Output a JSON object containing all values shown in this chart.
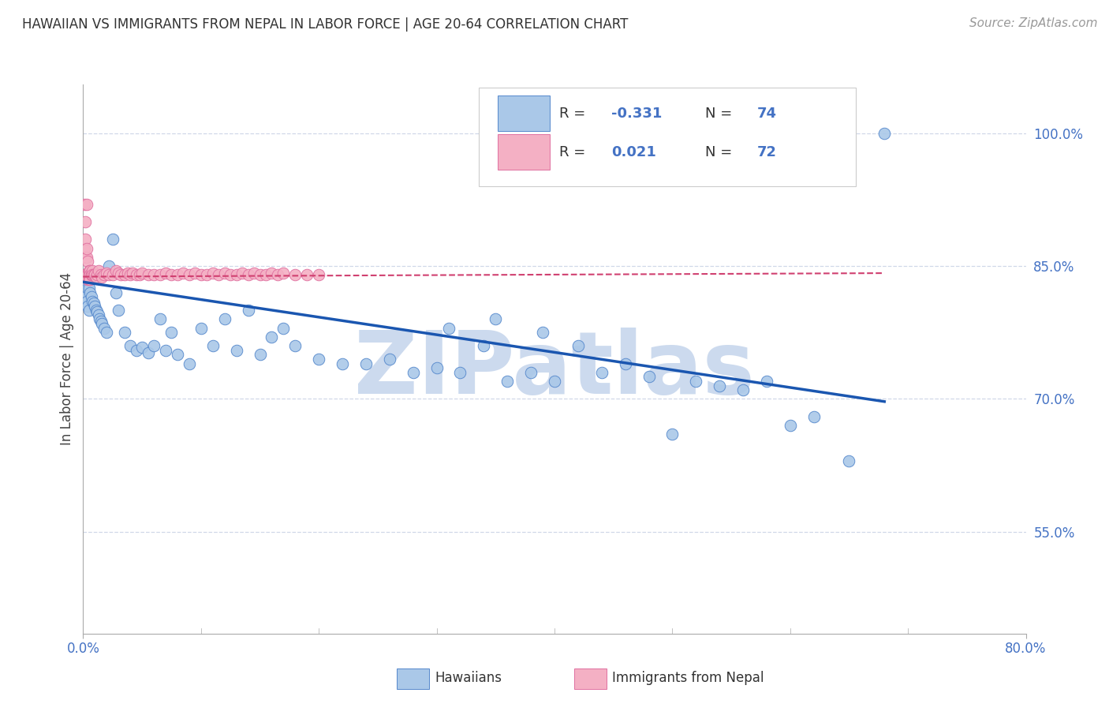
{
  "title": "HAWAIIAN VS IMMIGRANTS FROM NEPAL IN LABOR FORCE | AGE 20-64 CORRELATION CHART",
  "source": "Source: ZipAtlas.com",
  "ylabel": "In Labor Force | Age 20-64",
  "ytick_labels": [
    "100.0%",
    "85.0%",
    "70.0%",
    "55.0%"
  ],
  "ytick_values": [
    1.0,
    0.85,
    0.7,
    0.55
  ],
  "xlim": [
    0.0,
    0.8
  ],
  "ylim": [
    0.435,
    1.055
  ],
  "hawaiian_color": "#aac8e8",
  "hawaii_edge_color": "#5588cc",
  "hawaii_line_color": "#1a56b0",
  "nepal_color": "#f4b0c4",
  "nepal_edge_color": "#e070a0",
  "nepal_line_color": "#d04070",
  "watermark": "ZIPatlas",
  "watermark_color": "#ccdaee",
  "hawaiian_label": "Hawaiians",
  "nepal_label": "Immigrants from Nepal",
  "legend_r1_text": "R = ",
  "legend_r1_val": "-0.331",
  "legend_n1_text": "N = ",
  "legend_n1_val": "74",
  "legend_r2_text": "R =  ",
  "legend_r2_val": "0.021",
  "legend_n2_text": "N = ",
  "legend_n2_val": "72",
  "grid_color": "#d0d8e8",
  "axis_color": "#aaaaaa",
  "title_color": "#333333",
  "source_color": "#999999",
  "tick_label_color": "#4472c4",
  "ylabel_color": "#444444",
  "hawaii_x": [
    0.001,
    0.001,
    0.002,
    0.002,
    0.003,
    0.003,
    0.004,
    0.004,
    0.005,
    0.005,
    0.006,
    0.007,
    0.008,
    0.009,
    0.01,
    0.011,
    0.012,
    0.013,
    0.014,
    0.015,
    0.016,
    0.018,
    0.02,
    0.022,
    0.025,
    0.028,
    0.03,
    0.035,
    0.04,
    0.045,
    0.05,
    0.055,
    0.06,
    0.065,
    0.07,
    0.075,
    0.08,
    0.09,
    0.1,
    0.11,
    0.12,
    0.13,
    0.14,
    0.15,
    0.16,
    0.17,
    0.18,
    0.2,
    0.22,
    0.24,
    0.26,
    0.28,
    0.3,
    0.31,
    0.32,
    0.34,
    0.35,
    0.36,
    0.38,
    0.39,
    0.4,
    0.42,
    0.44,
    0.46,
    0.48,
    0.5,
    0.52,
    0.54,
    0.56,
    0.58,
    0.6,
    0.62,
    0.65,
    0.68
  ],
  "hawaii_y": [
    0.84,
    0.82,
    0.835,
    0.815,
    0.83,
    0.81,
    0.825,
    0.805,
    0.825,
    0.8,
    0.82,
    0.815,
    0.81,
    0.808,
    0.805,
    0.8,
    0.798,
    0.795,
    0.79,
    0.788,
    0.785,
    0.78,
    0.775,
    0.85,
    0.88,
    0.82,
    0.8,
    0.775,
    0.76,
    0.755,
    0.758,
    0.752,
    0.76,
    0.79,
    0.755,
    0.775,
    0.75,
    0.74,
    0.78,
    0.76,
    0.79,
    0.755,
    0.8,
    0.75,
    0.77,
    0.78,
    0.76,
    0.745,
    0.74,
    0.74,
    0.745,
    0.73,
    0.735,
    0.78,
    0.73,
    0.76,
    0.79,
    0.72,
    0.73,
    0.775,
    0.72,
    0.76,
    0.73,
    0.74,
    0.725,
    0.66,
    0.72,
    0.715,
    0.71,
    0.72,
    0.67,
    0.68,
    0.63,
    1.0
  ],
  "nepal_x": [
    0.001,
    0.001,
    0.001,
    0.002,
    0.002,
    0.002,
    0.002,
    0.003,
    0.003,
    0.003,
    0.003,
    0.004,
    0.004,
    0.004,
    0.005,
    0.005,
    0.005,
    0.006,
    0.006,
    0.006,
    0.007,
    0.007,
    0.008,
    0.008,
    0.009,
    0.01,
    0.011,
    0.012,
    0.013,
    0.015,
    0.016,
    0.018,
    0.02,
    0.022,
    0.025,
    0.028,
    0.03,
    0.032,
    0.035,
    0.038,
    0.04,
    0.042,
    0.045,
    0.048,
    0.05,
    0.055,
    0.06,
    0.065,
    0.07,
    0.075,
    0.08,
    0.085,
    0.09,
    0.095,
    0.1,
    0.105,
    0.11,
    0.115,
    0.12,
    0.125,
    0.13,
    0.135,
    0.14,
    0.145,
    0.15,
    0.155,
    0.16,
    0.165,
    0.17,
    0.18,
    0.19,
    0.2
  ],
  "nepal_y": [
    0.84,
    0.87,
    0.92,
    0.86,
    0.88,
    0.84,
    0.9,
    0.86,
    0.84,
    0.92,
    0.87,
    0.855,
    0.84,
    0.835,
    0.845,
    0.84,
    0.835,
    0.845,
    0.84,
    0.835,
    0.84,
    0.84,
    0.845,
    0.84,
    0.84,
    0.84,
    0.838,
    0.84,
    0.845,
    0.84,
    0.838,
    0.84,
    0.842,
    0.84,
    0.84,
    0.845,
    0.842,
    0.84,
    0.84,
    0.842,
    0.84,
    0.842,
    0.84,
    0.84,
    0.842,
    0.84,
    0.84,
    0.84,
    0.842,
    0.84,
    0.84,
    0.842,
    0.84,
    0.842,
    0.84,
    0.84,
    0.842,
    0.84,
    0.842,
    0.84,
    0.84,
    0.842,
    0.84,
    0.842,
    0.84,
    0.84,
    0.842,
    0.84,
    0.842,
    0.84,
    0.84,
    0.84
  ],
  "hawaii_trend_x": [
    0.0,
    0.68
  ],
  "hawaii_trend_y": [
    0.832,
    0.697
  ],
  "nepal_trend_x": [
    0.0,
    0.68
  ],
  "nepal_trend_y": [
    0.838,
    0.842
  ]
}
